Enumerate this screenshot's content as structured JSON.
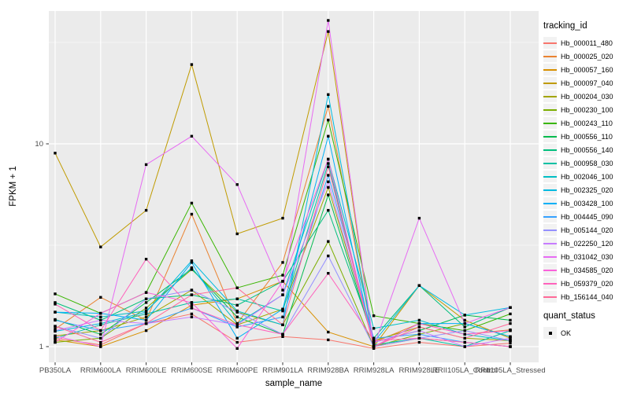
{
  "figure_type": "ggplot-line-chart",
  "legend": {
    "tracking_title": "tracking_id",
    "quant_title": "quant_status",
    "quant_items": [
      {
        "label": "OK",
        "shape": "black-square"
      }
    ]
  },
  "y_axis": {
    "label": "FPKM + 1",
    "scale": "log10",
    "ticks": [
      {
        "label": "10",
        "value": 10
      },
      {
        "label": "1",
        "value": 1
      }
    ],
    "minor_breaks": [
      3.1623,
      31.623
    ]
  },
  "x_axis": {
    "label": "sample_name"
  },
  "style": {
    "panel_bg": "#EBEBEB",
    "grid_color": "#FFFFFF",
    "tick_text_color": "#4D4D4D",
    "tick_mark_color": "#333333",
    "marker_color": "#000000"
  },
  "chart_data": {
    "type": "line",
    "title": "",
    "xlabel": "sample_name",
    "ylabel": "FPKM + 1",
    "yscale": "log10",
    "ylim": [
      0.85,
      45
    ],
    "grid": true,
    "legend_position": "right",
    "marker": "black-square (quant_status = OK at every point)",
    "categories": [
      "PB350LA",
      "RRIM600LA",
      "RRIM600LE",
      "RRIM600SE",
      "RRIM600PE",
      "RRIM901LA",
      "RRIM928BA",
      "RRIM928LA",
      "RRIM928LE",
      "RRII105LA_Control",
      "RRII105LA_Stressed"
    ],
    "series": [
      {
        "name": "Hb_000011_480",
        "color": "#F8766D",
        "values": [
          1.1,
          1.02,
          1.3,
          1.45,
          1.05,
          1.12,
          1.08,
          0.98,
          1.05,
          1.0,
          1.04
        ]
      },
      {
        "name": "Hb_000025_020",
        "color": "#EA8331",
        "values": [
          1.22,
          1.75,
          1.35,
          4.5,
          1.3,
          2.6,
          15.3,
          1.05,
          1.3,
          1.15,
          1.21
        ]
      },
      {
        "name": "Hb_000057_160",
        "color": "#D89000",
        "values": [
          1.08,
          1.0,
          1.2,
          1.6,
          1.72,
          2.1,
          1.18,
          1.0,
          1.1,
          1.05,
          1.0
        ]
      },
      {
        "name": "Hb_000097_040",
        "color": "#C09B00",
        "values": [
          9.0,
          3.1,
          4.7,
          24.6,
          3.6,
          4.3,
          35.8,
          1.0,
          2.0,
          1.35,
          1.1
        ]
      },
      {
        "name": "Hb_000204_030",
        "color": "#A3A500",
        "values": [
          1.13,
          1.2,
          1.4,
          1.9,
          1.28,
          1.53,
          6.1,
          1.07,
          1.25,
          1.1,
          1.07
        ]
      },
      {
        "name": "Hb_000230_100",
        "color": "#7CAE00",
        "values": [
          1.05,
          1.1,
          1.55,
          2.4,
          1.48,
          1.28,
          3.3,
          1.0,
          1.15,
          1.3,
          1.12
        ]
      },
      {
        "name": "Hb_000243_110",
        "color": "#39B600",
        "values": [
          1.82,
          1.46,
          1.85,
          5.1,
          1.95,
          2.25,
          13.1,
          1.42,
          1.3,
          1.2,
          1.45
        ]
      },
      {
        "name": "Hb_000556_110",
        "color": "#00BB4E",
        "values": [
          1.36,
          1.15,
          1.65,
          2.42,
          1.4,
          1.15,
          5.6,
          1.05,
          1.2,
          1.43,
          1.35
        ]
      },
      {
        "name": "Hb_000556_140",
        "color": "#00BF7D",
        "values": [
          1.65,
          1.35,
          1.72,
          1.8,
          1.6,
          2.1,
          4.7,
          1.1,
          2.0,
          1.25,
          1.56
        ]
      },
      {
        "name": "Hb_000958_030",
        "color": "#00C1A3",
        "values": [
          1.1,
          1.28,
          1.45,
          1.65,
          1.72,
          1.5,
          8.0,
          1.02,
          1.1,
          1.0,
          1.2
        ]
      },
      {
        "name": "Hb_002046_100",
        "color": "#00BFC4",
        "values": [
          1.48,
          1.4,
          1.5,
          2.45,
          1.3,
          1.8,
          8.4,
          1.23,
          1.35,
          1.15,
          1.07
        ]
      },
      {
        "name": "Hb_002325_020",
        "color": "#00BAE0",
        "values": [
          1.19,
          1.3,
          1.48,
          2.65,
          1.5,
          1.28,
          17.5,
          1.05,
          2.0,
          1.43,
          1.56
        ]
      },
      {
        "name": "Hb_003428_100",
        "color": "#00B0F6",
        "values": [
          1.48,
          1.46,
          1.35,
          2.6,
          1.1,
          1.53,
          10.9,
          1.0,
          1.3,
          1.3,
          1.12
        ]
      },
      {
        "name": "Hb_004445_090",
        "color": "#35A2FF",
        "values": [
          1.35,
          1.2,
          1.3,
          1.55,
          1.25,
          1.4,
          7.0,
          1.1,
          1.15,
          1.05,
          1.0
        ]
      },
      {
        "name": "Hb_005144_020",
        "color": "#9590FF",
        "values": [
          1.26,
          1.1,
          1.72,
          1.9,
          1.48,
          1.15,
          2.8,
          1.0,
          1.1,
          1.2,
          1.07
        ]
      },
      {
        "name": "Hb_022250_120",
        "color": "#C77CFF",
        "values": [
          1.2,
          1.35,
          1.3,
          1.4,
          1.28,
          1.8,
          6.5,
          1.05,
          1.2,
          1.0,
          1.1
        ]
      },
      {
        "name": "Hb_031042_030",
        "color": "#E76BF3",
        "values": [
          1.13,
          1.0,
          7.9,
          10.9,
          6.3,
          1.9,
          40.6,
          1.0,
          4.3,
          1.3,
          1.56
        ]
      },
      {
        "name": "Hb_034585_020",
        "color": "#FA62DB",
        "values": [
          1.05,
          1.46,
          1.85,
          1.65,
          0.98,
          2.1,
          8.4,
          1.0,
          1.3,
          1.15,
          1.2
        ]
      },
      {
        "name": "Hb_059379_020",
        "color": "#FF62BC",
        "values": [
          1.62,
          1.2,
          2.7,
          1.55,
          1.28,
          1.15,
          2.3,
          1.07,
          1.1,
          1.05,
          1.0
        ]
      },
      {
        "name": "Hb_156144_040",
        "color": "#FF6A98",
        "values": [
          1.26,
          1.05,
          1.3,
          1.8,
          1.95,
          1.28,
          7.7,
          1.0,
          1.25,
          1.1,
          1.3
        ]
      }
    ]
  }
}
